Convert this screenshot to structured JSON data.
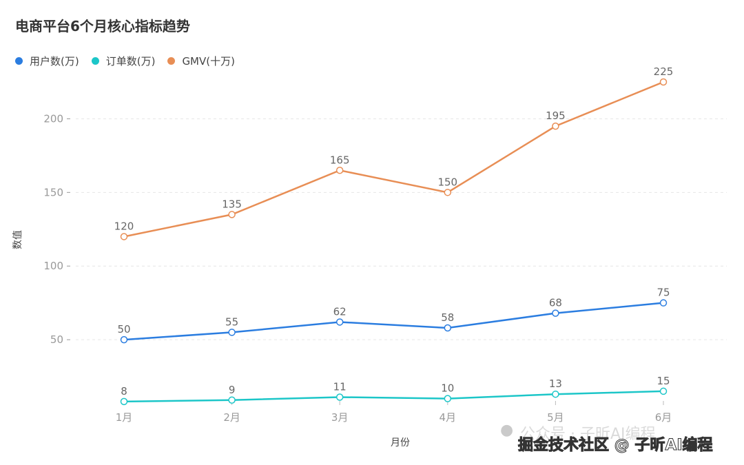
{
  "chart_data": {
    "type": "line",
    "title": "电商平台6个月核心指标趋势",
    "xlabel": "月份",
    "ylabel": "数值",
    "categories": [
      "1月",
      "2月",
      "3月",
      "4月",
      "5月",
      "6月"
    ],
    "ylim": [
      0,
      250
    ],
    "yticks": [
      50,
      100,
      150,
      200
    ],
    "grid": true,
    "legend_position": "top-left",
    "series": [
      {
        "name": "用户数(万)",
        "color": "#2b7de0",
        "values": [
          50,
          55,
          62,
          58,
          68,
          75
        ]
      },
      {
        "name": "订单数(万)",
        "color": "#1cc6c8",
        "values": [
          8,
          9,
          11,
          10,
          13,
          15
        ]
      },
      {
        "name": "GMV(十万)",
        "color": "#e88e55",
        "values": [
          120,
          135,
          165,
          150,
          195,
          225
        ]
      }
    ]
  },
  "watermark": {
    "back": "公众号 · 子昕AI编程",
    "front": "掘金技术社区 @ 子昕AI编程"
  }
}
